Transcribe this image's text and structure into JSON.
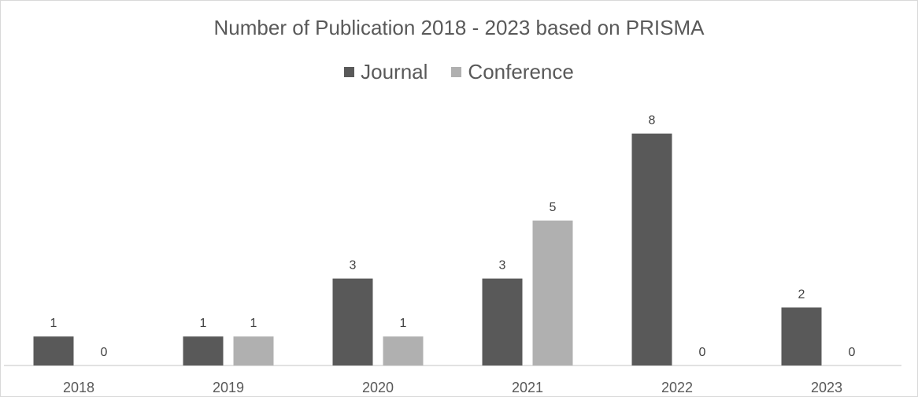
{
  "chart_data": {
    "type": "bar",
    "title": "Number of Publication 2018 - 2023 based on PRISMA",
    "categories": [
      "2018",
      "2019",
      "2020",
      "2021",
      "2022",
      "2023"
    ],
    "series": [
      {
        "name": "Journal",
        "values": [
          1,
          1,
          3,
          3,
          8,
          2
        ],
        "color": "#595959"
      },
      {
        "name": "Conference",
        "values": [
          0,
          1,
          1,
          5,
          0,
          0
        ],
        "color": "#b0b0b0"
      }
    ],
    "xlabel": "",
    "ylabel": "",
    "ylim": [
      0,
      8
    ],
    "grid": false,
    "legend_position": "top",
    "data_labels": true
  }
}
